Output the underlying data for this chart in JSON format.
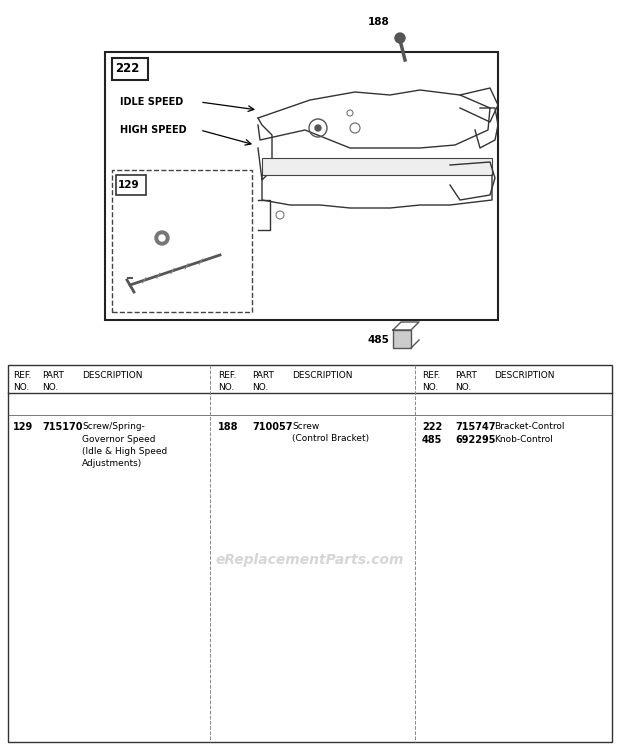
{
  "bg_color": "#ffffff",
  "watermark": "eReplacementParts.com",
  "parts": [
    {
      "ref": "129",
      "part": "715170",
      "desc": "Screw/Spring-\nGovernor Speed\n(Idle & High Speed\nAdjustments)",
      "col": 0
    },
    {
      "ref": "188",
      "part": "710057",
      "desc": "Screw\n(Control Bracket)",
      "col": 1
    },
    {
      "ref": "222",
      "part": "715747",
      "desc": "Bracket-Control",
      "col": 2
    },
    {
      "ref": "485",
      "part": "692295",
      "desc": "Knob-Control",
      "col": 2
    }
  ]
}
